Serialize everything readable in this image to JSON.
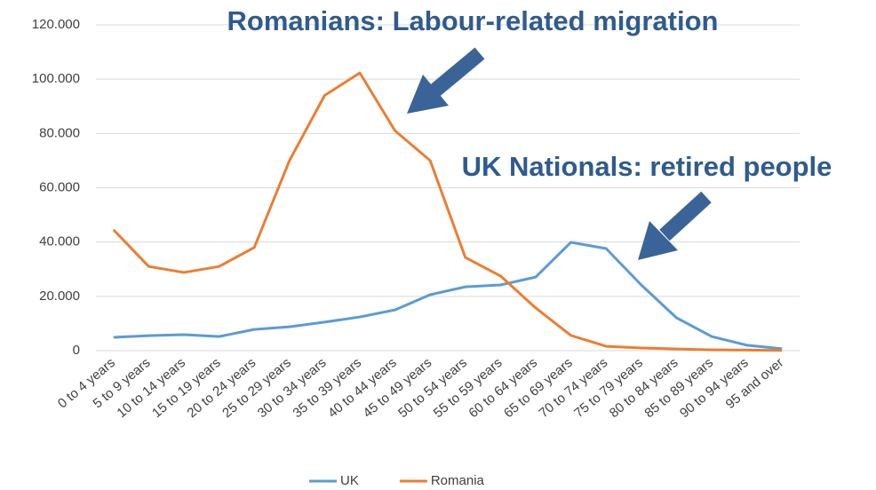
{
  "chart_data": {
    "type": "line",
    "annotations": [
      "Romanians: Labour-related migration",
      "UK Nationals: retired people"
    ],
    "categories": [
      "0 to 4 years",
      "5 to 9 years",
      "10 to 14 years",
      "15 to 19 years",
      "20 to 24 years",
      "25 to 29 years",
      "30 to 34 years",
      "35 to 39 years",
      "40 to 44 years",
      "45 to 49 years",
      "50 to 54 years",
      "55 to 59 years",
      "60 to 64 years",
      "65 to 69 years",
      "70 to 74 years",
      "75 to 79 years",
      "80 to 84 years",
      "85 to 89 years",
      "90 to 94 years",
      "95 and over"
    ],
    "series": [
      {
        "name": "UK",
        "color": "#5b9bd5",
        "values": [
          4900,
          5500,
          5900,
          5200,
          7800,
          8800,
          10500,
          12400,
          15000,
          20600,
          23500,
          24200,
          27100,
          39900,
          37600,
          24200,
          12100,
          5200,
          2000,
          700
        ]
      },
      {
        "name": "Romania",
        "color": "#ed7d31",
        "values": [
          44500,
          31000,
          28800,
          31000,
          38000,
          70000,
          94000,
          102300,
          81000,
          70000,
          34300,
          27500,
          15700,
          5600,
          1600,
          1000,
          600,
          300,
          200,
          100
        ]
      }
    ],
    "ylim": [
      0,
      120000
    ],
    "yticks": [
      0,
      {
        "value": 20000,
        "label": "20.000"
      },
      {
        "value": 40000,
        "label": "40.000"
      },
      {
        "value": 60000,
        "label": "60.000"
      },
      {
        "value": 80000,
        "label": "80.000"
      },
      {
        "value": 100000,
        "label": "100.000"
      },
      {
        "value": 120000,
        "label": "120.000"
      }
    ],
    "grid": true,
    "legend": "bottom"
  }
}
